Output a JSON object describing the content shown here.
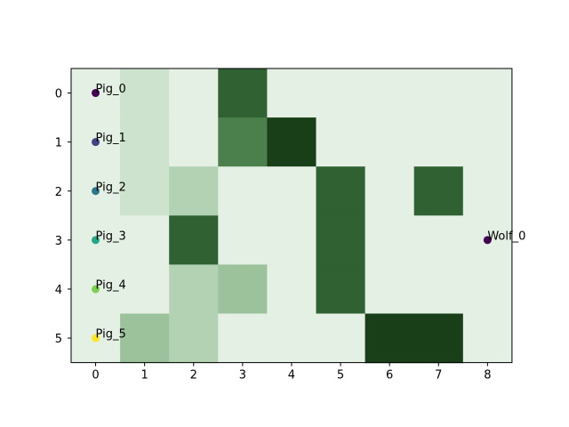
{
  "grid": {
    "rows": 6,
    "cols": 9,
    "x_ticks": [
      "0",
      "1",
      "2",
      "3",
      "4",
      "5",
      "6",
      "7",
      "8"
    ],
    "y_ticks": [
      "0",
      "1",
      "2",
      "3",
      "4",
      "5"
    ],
    "values": [
      [
        0,
        1,
        0,
        5,
        0,
        0,
        0,
        0,
        0
      ],
      [
        0,
        1,
        0,
        4,
        6,
        0,
        0,
        0,
        0
      ],
      [
        0,
        1,
        2,
        0,
        0,
        5,
        0,
        5,
        0
      ],
      [
        0,
        0,
        5,
        0,
        0,
        5,
        0,
        0,
        0
      ],
      [
        0,
        0,
        2,
        3,
        0,
        5,
        0,
        0,
        0
      ],
      [
        0,
        3,
        2,
        0,
        0,
        0,
        6,
        6,
        0
      ]
    ],
    "level_colors": [
      "#e5f0e5",
      "#cde3cd",
      "#b3d2b3",
      "#9cc29c",
      "#4b7f4b",
      "#2f6132",
      "#183f18"
    ],
    "frame_color": "#000000"
  },
  "agents": [
    {
      "name": "Pig_0",
      "row": 0,
      "col": 0,
      "color": "#440154"
    },
    {
      "name": "Pig_1",
      "row": 1,
      "col": 0,
      "color": "#414487"
    },
    {
      "name": "Pig_2",
      "row": 2,
      "col": 0,
      "color": "#2a788e"
    },
    {
      "name": "Pig_3",
      "row": 3,
      "col": 0,
      "color": "#22a884"
    },
    {
      "name": "Pig_4",
      "row": 4,
      "col": 0,
      "color": "#7ad151"
    },
    {
      "name": "Pig_5",
      "row": 5,
      "col": 0,
      "color": "#fde725"
    },
    {
      "name": "Wolf_0",
      "row": 3,
      "col": 8,
      "color": "#440154"
    }
  ]
}
